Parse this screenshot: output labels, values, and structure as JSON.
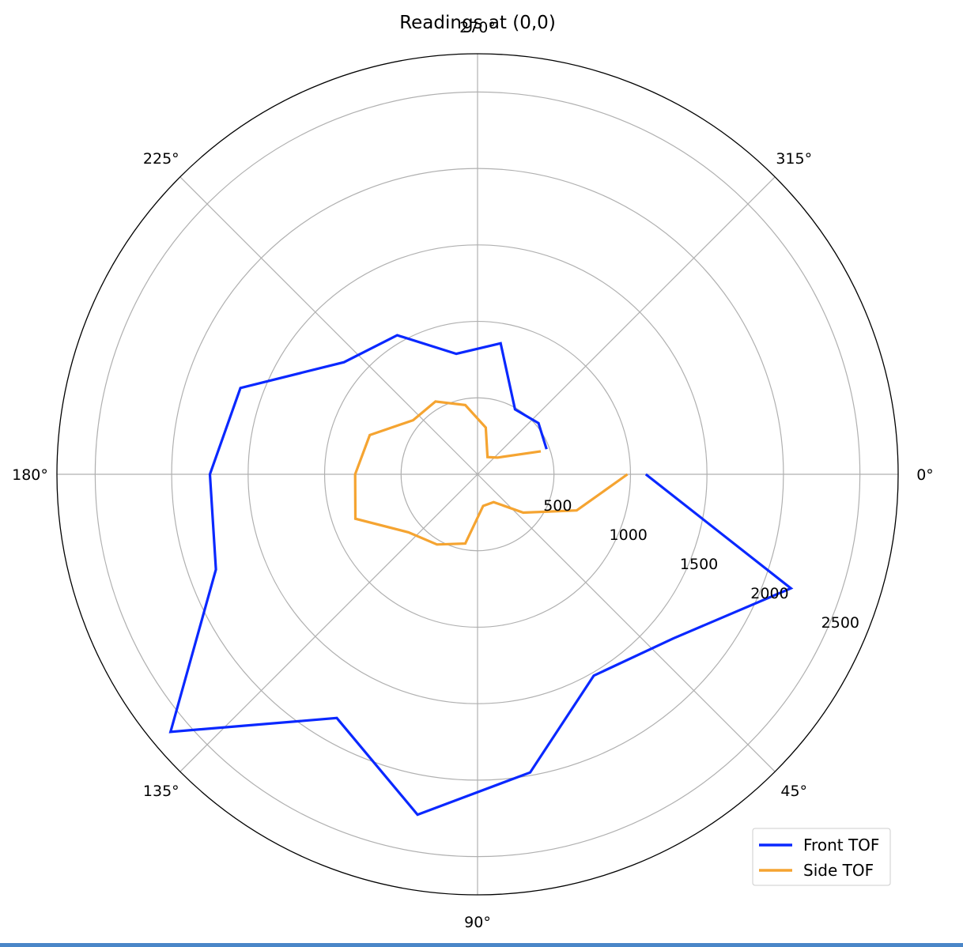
{
  "chart_data": {
    "type": "polar-line",
    "title": "Readings at (0,0)",
    "theta_direction": "clockwise",
    "theta_zero": "right",
    "theta_ticks": [
      "0°",
      "45°",
      "90°",
      "135°",
      "180°",
      "225°",
      "270°",
      "315°"
    ],
    "theta_tick_degrees": [
      0,
      45,
      90,
      135,
      180,
      225,
      270,
      315
    ],
    "r_ticks": [
      500,
      1000,
      1500,
      2000,
      2500
    ],
    "r_tick_labels": [
      "500",
      "1000",
      "1500",
      "2000",
      "2500"
    ],
    "r_max": 2750,
    "r_label_angle_deg": 22.5,
    "grid": true,
    "legend_location": "lower-right",
    "series": [
      {
        "name": "Front TOF",
        "color": "#0a28ff",
        "theta_deg": [
          0,
          20,
          40,
          60,
          80,
          100,
          120,
          140,
          160,
          180,
          200,
          220,
          240,
          260,
          280,
          300,
          320,
          340
        ],
        "r": [
          1100,
          2180,
          1670,
          1520,
          1980,
          2260,
          1840,
          2620,
          1820,
          1750,
          1650,
          1140,
          1050,
          800,
          870,
          490,
          520,
          480
        ]
      },
      {
        "name": "Side TOF",
        "color": "#f5a431",
        "theta_deg": [
          0,
          20,
          40,
          60,
          80,
          100,
          120,
          140,
          160,
          180,
          200,
          220,
          240,
          260,
          280,
          300,
          320,
          340
        ],
        "r": [
          980,
          690,
          390,
          210,
          210,
          460,
          530,
          590,
          850,
          800,
          750,
          550,
          550,
          460,
          310,
          130,
          170,
          440
        ]
      }
    ]
  }
}
